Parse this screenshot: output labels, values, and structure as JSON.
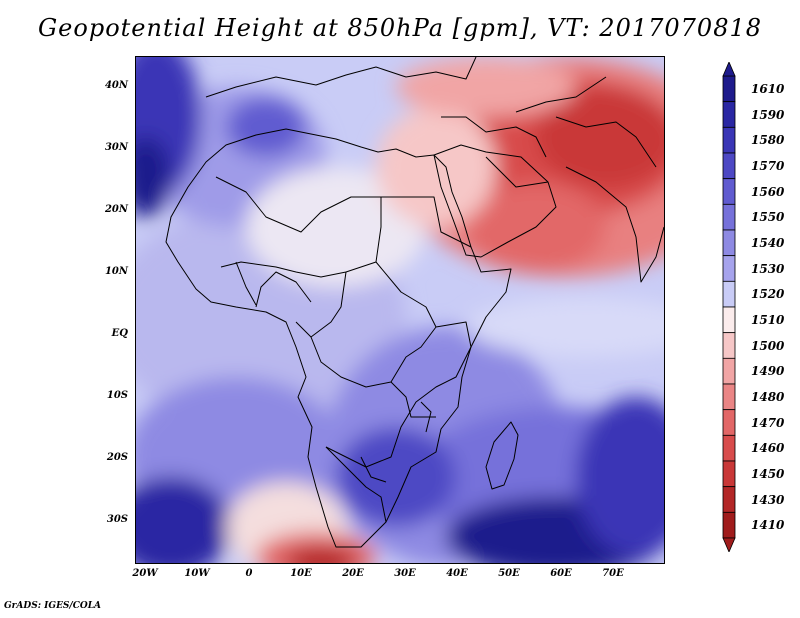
{
  "title": "Geopotential Height at 850hPa [gpm], VT: 2017070818",
  "credit": "GrADS: IGES/COLA",
  "map": {
    "lon_range": [
      -23,
      80
    ],
    "lat_range": [
      -37,
      45
    ],
    "lat_labels": [
      "40N",
      "30N",
      "20N",
      "10N",
      "EQ",
      "10S",
      "20S",
      "30S"
    ],
    "lon_labels": [
      "20W",
      "10W",
      "0",
      "10E",
      "20E",
      "30E",
      "40E",
      "50E",
      "60E",
      "70E"
    ]
  },
  "legend": {
    "values": [
      "1610",
      "1590",
      "1580",
      "1570",
      "1560",
      "1550",
      "1540",
      "1530",
      "1520",
      "1510",
      "1500",
      "1490",
      "1480",
      "1470",
      "1460",
      "1450",
      "1430",
      "1410"
    ],
    "colors": [
      "#1e1b8c",
      "#2a27a3",
      "#3a36b6",
      "#4d48c4",
      "#605bd0",
      "#7671da",
      "#8e8ae3",
      "#a6a3ec",
      "#c9ccf6",
      "#fbecec",
      "#f6c7c7",
      "#f1a5a5",
      "#ea8585",
      "#e26767",
      "#d84c4c",
      "#c93838",
      "#b32727",
      "#a01c1c"
    ]
  }
}
